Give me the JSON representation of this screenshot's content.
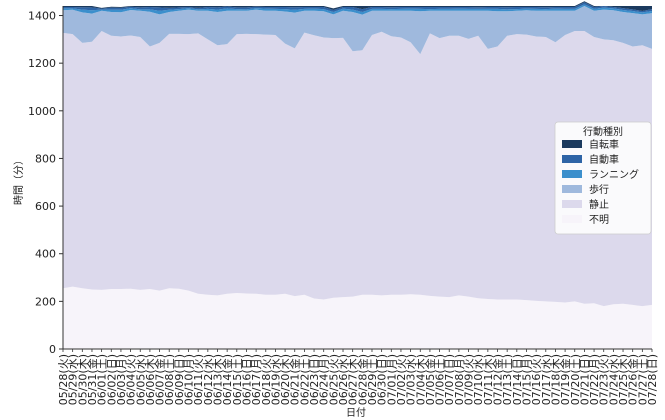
{
  "chart_data": {
    "type": "area",
    "stacked": true,
    "xlabel": "日付",
    "ylabel": "時間（分）",
    "ylim": [
      0,
      1440
    ],
    "yticks": [
      0,
      200,
      400,
      600,
      800,
      1000,
      1200,
      1400
    ],
    "grid": false,
    "legend": {
      "title": "行動種別",
      "placement": "center-right",
      "entries": [
        {
          "label": "自転車",
          "color": "#1b3a5e"
        },
        {
          "label": "自動車",
          "color": "#2e64a6"
        },
        {
          "label": "ランニング",
          "color": "#3b8fcc"
        },
        {
          "label": "歩行",
          "color": "#9fb9dd"
        },
        {
          "label": "静止",
          "color": "#dcd9ec"
        },
        {
          "label": "不明",
          "color": "#f7f4fa"
        }
      ]
    },
    "categories": [
      "05/28(火)",
      "05/29(水)",
      "05/30(木)",
      "05/31(金)",
      "06/01(土)",
      "06/02(日)",
      "06/03(月)",
      "06/04(火)",
      "06/05(水)",
      "06/06(木)",
      "06/07(金)",
      "06/08(土)",
      "06/09(日)",
      "06/10(月)",
      "06/11(火)",
      "06/12(水)",
      "06/13(木)",
      "06/14(金)",
      "06/15(土)",
      "06/16(日)",
      "06/17(月)",
      "06/18(火)",
      "06/19(水)",
      "06/20(木)",
      "06/21(金)",
      "06/22(土)",
      "06/23(日)",
      "06/24(月)",
      "06/25(火)",
      "06/26(水)",
      "06/27(木)",
      "06/28(金)",
      "06/29(土)",
      "06/30(日)",
      "07/01(月)",
      "07/02(火)",
      "07/03(水)",
      "07/04(木)",
      "07/05(金)",
      "07/06(土)",
      "07/07(日)",
      "07/08(月)",
      "07/09(火)",
      "07/10(水)",
      "07/11(木)",
      "07/12(金)",
      "07/13(土)",
      "07/14(日)",
      "07/15(月)",
      "07/16(火)",
      "07/17(水)",
      "07/18(木)",
      "07/19(金)",
      "07/20(土)",
      "07/21(日)",
      "07/22(月)",
      "07/23(火)",
      "07/24(水)",
      "07/25(木)",
      "07/26(金)",
      "07/27(土)",
      "07/28(日)"
    ],
    "series": [
      {
        "name": "不明",
        "color": "#f7f4fa",
        "values": [
          255,
          262,
          255,
          250,
          248,
          252,
          252,
          253,
          248,
          252,
          245,
          255,
          253,
          245,
          232,
          228,
          225,
          232,
          235,
          233,
          232,
          228,
          228,
          232,
          222,
          228,
          212,
          208,
          215,
          218,
          220,
          228,
          228,
          225,
          228,
          228,
          230,
          228,
          223,
          220,
          218,
          225,
          220,
          213,
          210,
          208,
          208,
          208,
          205,
          202,
          200,
          198,
          195,
          200,
          190,
          192,
          180,
          188,
          190,
          185,
          180,
          185
        ]
      },
      {
        "name": "静止",
        "color": "#dcd9ec",
        "values": [
          1072,
          1060,
          1030,
          1040,
          1087,
          1063,
          1060,
          1063,
          1062,
          1018,
          1040,
          1068,
          1070,
          1077,
          1093,
          1072,
          1050,
          1048,
          1087,
          1090,
          1090,
          1092,
          1090,
          1050,
          1040,
          1100,
          1105,
          1100,
          1090,
          1088,
          1030,
          1026,
          1090,
          1107,
          1085,
          1080,
          1058,
          1010,
          1102,
          1085,
          1097,
          1090,
          1082,
          1102,
          1050,
          1062,
          1107,
          1114,
          1115,
          1110,
          1110,
          1090,
          1123,
          1135,
          1145,
          1118,
          1120,
          1108,
          1095,
          1085,
          1095,
          1075
        ]
      },
      {
        "name": "歩行",
        "color": "#9fb9dd",
        "values": [
          95,
          102,
          128,
          118,
          85,
          100,
          102,
          107,
          110,
          146,
          120,
          92,
          97,
          103,
          95,
          120,
          140,
          140,
          98,
          97,
          103,
          100,
          102,
          135,
          150,
          92,
          103,
          110,
          100,
          114,
          165,
          150,
          102,
          88,
          107,
          112,
          132,
          180,
          95,
          115,
          105,
          105,
          118,
          105,
          160,
          148,
          103,
          98,
          102,
          108,
          110,
          132,
          102,
          85,
          105,
          110,
          125,
          126,
          130,
          140,
          130,
          150
        ]
      },
      {
        "name": "ランニング",
        "color": "#3b8fcc",
        "values": [
          8,
          6,
          12,
          14,
          5,
          10,
          10,
          8,
          6,
          10,
          15,
          9,
          7,
          6,
          6,
          8,
          10,
          10,
          7,
          6,
          6,
          9,
          8,
          10,
          12,
          8,
          9,
          9,
          10,
          9,
          10,
          11,
          8,
          8,
          7,
          8,
          9,
          10,
          7,
          8,
          8,
          9,
          8,
          8,
          8,
          10,
          8,
          7,
          7,
          8,
          7,
          9,
          8,
          8,
          7,
          8,
          8,
          8,
          8,
          9,
          8,
          9
        ]
      },
      {
        "name": "自動車",
        "color": "#2e64a6",
        "values": [
          6,
          6,
          10,
          12,
          4,
          8,
          8,
          6,
          8,
          10,
          14,
          8,
          7,
          5,
          6,
          8,
          9,
          8,
          7,
          8,
          6,
          7,
          8,
          9,
          11,
          8,
          7,
          9,
          8,
          7,
          11,
          12,
          8,
          8,
          8,
          8,
          7,
          8,
          9,
          8,
          8,
          7,
          8,
          7,
          8,
          8,
          9,
          9,
          7,
          8,
          8,
          7,
          8,
          8,
          9,
          8,
          7,
          6,
          8,
          7,
          6,
          8
        ]
      },
      {
        "name": "自転車",
        "color": "#1b3a5e",
        "values": [
          4,
          4,
          5,
          6,
          3,
          4,
          4,
          3,
          6,
          4,
          6,
          8,
          6,
          4,
          8,
          4,
          6,
          2,
          6,
          6,
          3,
          4,
          4,
          4,
          5,
          4,
          4,
          4,
          7,
          4,
          4,
          13,
          4,
          4,
          5,
          4,
          4,
          4,
          4,
          4,
          4,
          4,
          4,
          5,
          4,
          4,
          5,
          4,
          4,
          4,
          5,
          4,
          4,
          4,
          4,
          4,
          0,
          4,
          9,
          14,
          21,
          13
        ]
      }
    ]
  }
}
